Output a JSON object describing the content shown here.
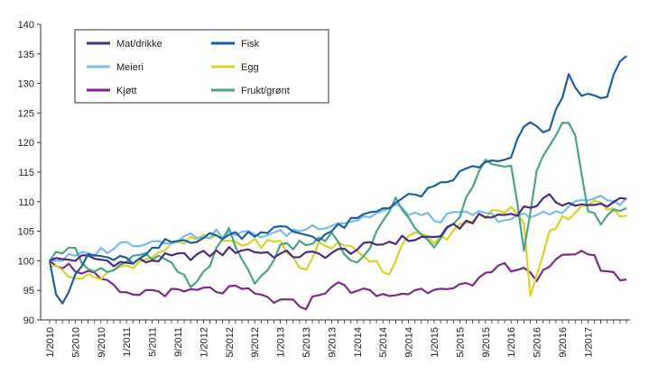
{
  "chart_data": {
    "type": "line",
    "title": "",
    "xlabel": "",
    "ylabel": "",
    "ylim": [
      90,
      140
    ],
    "yticks": [
      90,
      95,
      100,
      105,
      110,
      115,
      120,
      125,
      130,
      135,
      140
    ],
    "xtick_labels": [
      "1/2010",
      "5/2010",
      "9/2010",
      "1/2011",
      "5/2011",
      "9/2011",
      "1/2012",
      "5/2012",
      "9/2012",
      "1/2013",
      "5/2013",
      "9/2013",
      "1/2014",
      "5/2014",
      "9/2014",
      "1/2015",
      "5/2015",
      "9/2015",
      "1/2016",
      "5/2016",
      "9/2016",
      "1/2017"
    ],
    "period_start": "1/2010",
    "n_months": 91,
    "grid": false,
    "legend_position": "top-left",
    "series": [
      {
        "name": "Mat/drikke",
        "color": "#4b2d7f",
        "knots": [
          [
            0,
            100
          ],
          [
            6,
            100.5
          ],
          [
            12,
            99.5
          ],
          [
            18,
            100.5
          ],
          [
            24,
            101
          ],
          [
            30,
            102
          ],
          [
            36,
            101
          ],
          [
            42,
            101
          ],
          [
            48,
            102
          ],
          [
            54,
            103.5
          ],
          [
            60,
            104
          ],
          [
            66,
            107
          ],
          [
            72,
            108
          ],
          [
            78,
            110.5
          ],
          [
            84,
            109
          ],
          [
            88,
            110
          ],
          [
            90,
            111
          ]
        ]
      },
      {
        "name": "Fisk",
        "color": "#1f5fa0",
        "knots": [
          [
            0,
            100
          ],
          [
            1,
            95
          ],
          [
            2,
            93
          ],
          [
            4,
            97
          ],
          [
            6,
            101
          ],
          [
            12,
            100
          ],
          [
            14,
            100
          ],
          [
            18,
            103
          ],
          [
            24,
            104
          ],
          [
            30,
            104.5
          ],
          [
            36,
            105.5
          ],
          [
            42,
            104
          ],
          [
            48,
            107
          ],
          [
            54,
            110
          ],
          [
            60,
            112
          ],
          [
            66,
            116
          ],
          [
            72,
            117
          ],
          [
            74,
            123
          ],
          [
            78,
            122
          ],
          [
            81,
            131
          ],
          [
            84,
            127.5
          ],
          [
            87,
            127.5
          ],
          [
            89,
            134
          ],
          [
            90,
            134.2
          ]
        ]
      },
      {
        "name": "Meieri",
        "color": "#79bde8",
        "knots": [
          [
            0,
            100
          ],
          [
            6,
            101
          ],
          [
            12,
            103
          ],
          [
            18,
            103.5
          ],
          [
            24,
            104.5
          ],
          [
            30,
            104.5
          ],
          [
            36,
            104.5
          ],
          [
            42,
            106
          ],
          [
            48,
            107
          ],
          [
            54,
            109
          ],
          [
            60,
            107
          ],
          [
            66,
            108
          ],
          [
            72,
            107
          ],
          [
            78,
            108
          ],
          [
            84,
            110.5
          ],
          [
            90,
            110
          ]
        ]
      },
      {
        "name": "Egg",
        "color": "#d6d526",
        "knots": [
          [
            0,
            99
          ],
          [
            6,
            97
          ],
          [
            12,
            99
          ],
          [
            18,
            102
          ],
          [
            24,
            104
          ],
          [
            30,
            103
          ],
          [
            36,
            103
          ],
          [
            40,
            98
          ],
          [
            42,
            103
          ],
          [
            48,
            102
          ],
          [
            53,
            98
          ],
          [
            56,
            105
          ],
          [
            60,
            103
          ],
          [
            66,
            107
          ],
          [
            72,
            109
          ],
          [
            74,
            106
          ],
          [
            75,
            94.5
          ],
          [
            78,
            105
          ],
          [
            80,
            107
          ],
          [
            84,
            110
          ],
          [
            87,
            109
          ],
          [
            90,
            107
          ]
        ]
      },
      {
        "name": "Kjøtt",
        "color": "#7d2a88",
        "knots": [
          [
            0,
            100
          ],
          [
            6,
            98
          ],
          [
            12,
            94
          ],
          [
            16,
            95
          ],
          [
            20,
            94.5
          ],
          [
            24,
            95
          ],
          [
            30,
            95
          ],
          [
            36,
            93
          ],
          [
            40,
            92.5
          ],
          [
            44,
            96
          ],
          [
            48,
            95
          ],
          [
            52,
            94
          ],
          [
            58,
            95
          ],
          [
            62,
            96
          ],
          [
            66,
            95.5
          ],
          [
            70,
            99
          ],
          [
            74,
            99
          ],
          [
            76,
            97
          ],
          [
            78,
            98.5
          ],
          [
            81,
            101.5
          ],
          [
            84,
            101.5
          ],
          [
            86,
            99
          ],
          [
            88,
            97.5
          ],
          [
            90,
            97
          ]
        ]
      },
      {
        "name": "Frukt/grønt",
        "color": "#4ea384",
        "knots": [
          [
            0,
            100
          ],
          [
            3,
            103
          ],
          [
            6,
            99
          ],
          [
            10,
            98
          ],
          [
            14,
            101
          ],
          [
            18,
            100
          ],
          [
            22,
            96
          ],
          [
            24,
            98
          ],
          [
            28,
            105
          ],
          [
            32,
            96
          ],
          [
            36,
            102
          ],
          [
            44,
            104
          ],
          [
            48,
            99
          ],
          [
            54,
            110
          ],
          [
            60,
            102
          ],
          [
            64,
            108
          ],
          [
            68,
            117
          ],
          [
            72,
            116
          ],
          [
            74,
            102
          ],
          [
            76,
            115
          ],
          [
            80,
            124
          ],
          [
            82,
            122
          ],
          [
            84,
            109
          ],
          [
            86,
            106
          ],
          [
            88,
            108
          ],
          [
            90,
            109.5
          ]
        ]
      }
    ]
  }
}
